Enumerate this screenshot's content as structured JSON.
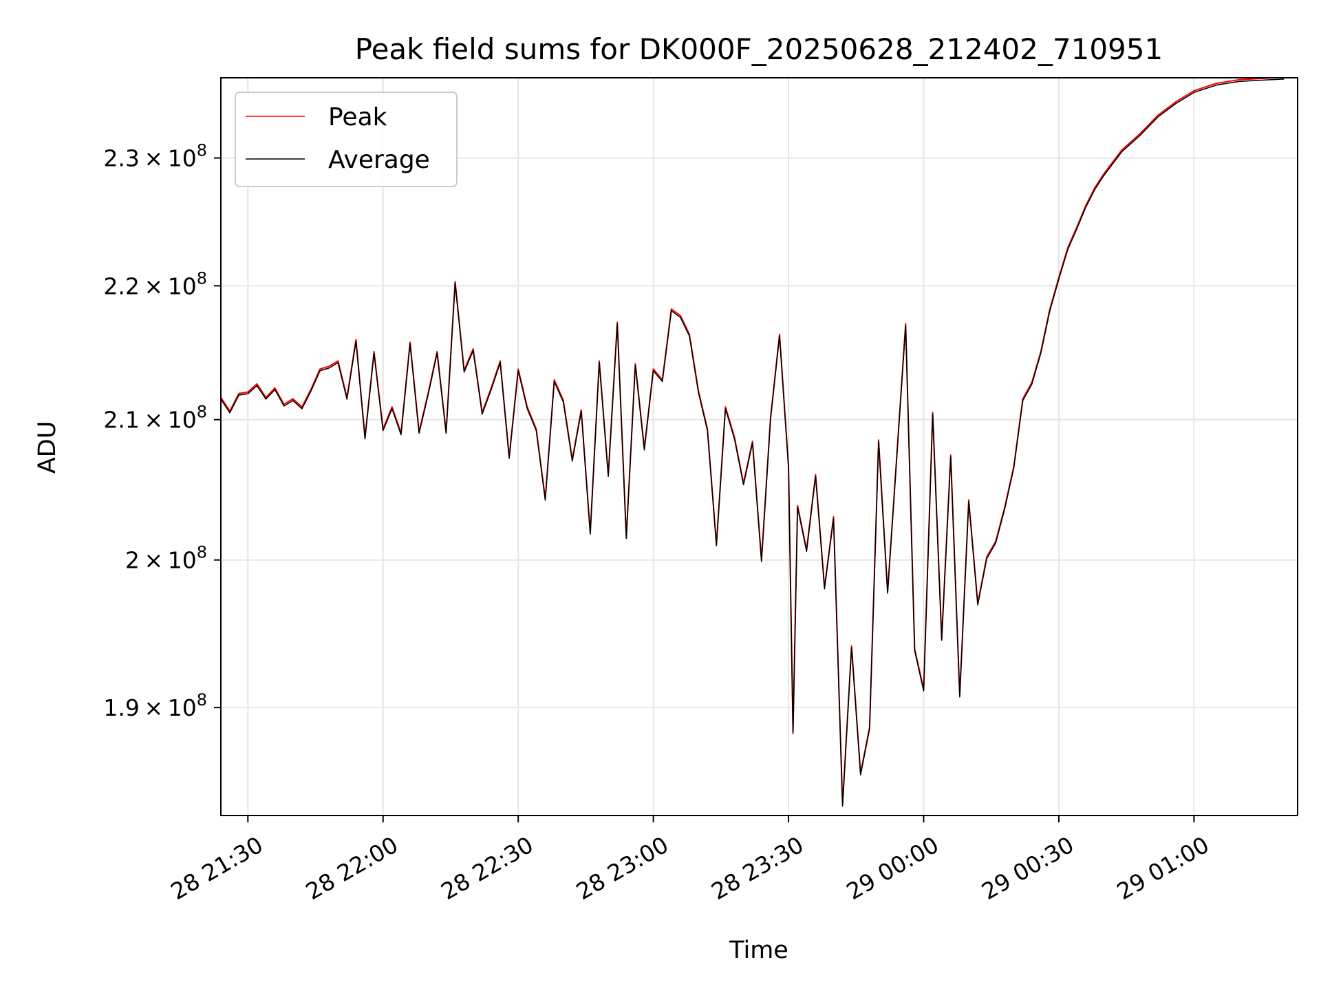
{
  "chart_data": {
    "type": "line",
    "title": "Peak field sums for DK000F_20250628_212402_710951",
    "xlabel": "Time",
    "ylabel": "ADU",
    "y_scale": "log",
    "xlim": [
      "2025-06-28 21:24:00",
      "2025-06-29 01:23:00"
    ],
    "ylim": [
      183000000,
      236500000
    ],
    "grid": true,
    "legend_placement": "top-left",
    "x_ticks": [
      {
        "value": "2025-06-28 21:30",
        "label": "28 21:30"
      },
      {
        "value": "2025-06-28 22:00",
        "label": "28 22:00"
      },
      {
        "value": "2025-06-28 22:30",
        "label": "28 22:30"
      },
      {
        "value": "2025-06-28 23:00",
        "label": "28 23:00"
      },
      {
        "value": "2025-06-28 23:30",
        "label": "28 23:30"
      },
      {
        "value": "2025-06-29 00:00",
        "label": "29 00:00"
      },
      {
        "value": "2025-06-29 00:30",
        "label": "29 00:30"
      },
      {
        "value": "2025-06-29 01:00",
        "label": "29 01:00"
      }
    ],
    "y_ticks": [
      {
        "value": 190000000,
        "mantissa": "1.9",
        "exp": "8"
      },
      {
        "value": 200000000,
        "mantissa": "2",
        "exp": "8"
      },
      {
        "value": 210000000,
        "mantissa": "2.1",
        "exp": "8"
      },
      {
        "value": 220000000,
        "mantissa": "2.2",
        "exp": "8"
      },
      {
        "value": 230000000,
        "mantissa": "2.3",
        "exp": "8"
      }
    ],
    "series": [
      {
        "name": "Peak",
        "color": "#ff0000",
        "offset_pct": 0.06,
        "x": [
          "2025-06-28 21:24",
          "2025-06-28 21:26",
          "2025-06-28 21:28",
          "2025-06-28 21:30",
          "2025-06-28 21:32",
          "2025-06-28 21:34",
          "2025-06-28 21:36",
          "2025-06-28 21:38",
          "2025-06-28 21:40",
          "2025-06-28 21:42",
          "2025-06-28 21:44",
          "2025-06-28 21:46",
          "2025-06-28 21:48",
          "2025-06-28 21:50",
          "2025-06-28 21:52",
          "2025-06-28 21:54",
          "2025-06-28 21:56",
          "2025-06-28 21:58",
          "2025-06-28 22:00",
          "2025-06-28 22:02",
          "2025-06-28 22:04",
          "2025-06-28 22:06",
          "2025-06-28 22:08",
          "2025-06-28 22:10",
          "2025-06-28 22:12",
          "2025-06-28 22:14",
          "2025-06-28 22:16",
          "2025-06-28 22:18",
          "2025-06-28 22:20",
          "2025-06-28 22:22",
          "2025-06-28 22:24",
          "2025-06-28 22:26",
          "2025-06-28 22:28",
          "2025-06-28 22:30",
          "2025-06-28 22:32",
          "2025-06-28 22:34",
          "2025-06-28 22:36",
          "2025-06-28 22:38",
          "2025-06-28 22:40",
          "2025-06-28 22:42",
          "2025-06-28 22:44",
          "2025-06-28 22:46",
          "2025-06-28 22:48",
          "2025-06-28 22:50",
          "2025-06-28 22:52",
          "2025-06-28 22:54",
          "2025-06-28 22:56",
          "2025-06-28 22:58",
          "2025-06-28 23:00",
          "2025-06-28 23:02",
          "2025-06-28 23:04",
          "2025-06-28 23:06",
          "2025-06-28 23:08",
          "2025-06-28 23:10",
          "2025-06-28 23:12",
          "2025-06-28 23:14",
          "2025-06-28 23:16",
          "2025-06-28 23:18",
          "2025-06-28 23:20",
          "2025-06-28 23:22",
          "2025-06-28 23:24",
          "2025-06-28 23:26",
          "2025-06-28 23:28",
          "2025-06-28 23:30",
          "2025-06-28 23:31",
          "2025-06-28 23:32",
          "2025-06-28 23:34",
          "2025-06-28 23:36",
          "2025-06-28 23:38",
          "2025-06-28 23:40",
          "2025-06-28 23:42",
          "2025-06-28 23:44",
          "2025-06-28 23:46",
          "2025-06-28 23:48",
          "2025-06-28 23:50",
          "2025-06-28 23:52",
          "2025-06-28 23:54",
          "2025-06-28 23:56",
          "2025-06-28 23:58",
          "2025-06-29 00:00",
          "2025-06-29 00:02",
          "2025-06-29 00:04",
          "2025-06-29 00:06",
          "2025-06-29 00:08",
          "2025-06-29 00:10",
          "2025-06-29 00:12",
          "2025-06-29 00:14",
          "2025-06-29 00:16",
          "2025-06-29 00:18",
          "2025-06-29 00:20",
          "2025-06-29 00:22",
          "2025-06-29 00:24",
          "2025-06-29 00:26",
          "2025-06-29 00:28",
          "2025-06-29 00:30",
          "2025-06-29 00:32",
          "2025-06-29 00:34",
          "2025-06-29 00:36",
          "2025-06-29 00:38",
          "2025-06-29 00:40",
          "2025-06-29 00:44",
          "2025-06-29 00:48",
          "2025-06-29 00:52",
          "2025-06-29 00:56",
          "2025-06-29 01:00",
          "2025-06-29 01:05",
          "2025-06-29 01:10",
          "2025-06-29 01:15",
          "2025-06-29 01:20"
        ],
        "values": [
          211500000,
          210500000,
          211800000,
          211900000,
          212500000,
          211500000,
          212200000,
          211000000,
          211400000,
          210800000,
          212100000,
          213600000,
          213800000,
          214200000,
          211500000,
          215800000,
          208600000,
          214900000,
          209200000,
          210800000,
          208900000,
          215600000,
          209000000,
          211800000,
          214900000,
          209000000,
          220200000,
          213500000,
          215100000,
          210400000,
          212200000,
          214200000,
          207200000,
          213600000,
          210800000,
          209200000,
          204200000,
          212800000,
          211300000,
          207000000,
          210600000,
          201800000,
          214200000,
          205900000,
          217100000,
          201500000,
          214000000,
          207800000,
          213600000,
          212800000,
          218100000,
          217600000,
          216200000,
          212000000,
          209200000,
          201000000,
          210800000,
          208600000,
          205300000,
          208300000,
          199900000,
          210000000,
          216200000,
          206500000,
          188300000,
          203700000,
          200600000,
          205900000,
          198000000,
          202900000,
          183600000,
          194000000,
          185600000,
          188600000,
          208400000,
          197700000,
          207100000,
          217000000,
          193800000,
          191100000,
          210400000,
          194500000,
          207300000,
          190700000,
          204100000,
          196900000,
          200100000,
          201200000,
          203600000,
          206500000,
          211400000,
          212600000,
          214900000,
          218100000,
          220500000,
          222800000,
          224400000,
          226100000,
          227500000,
          228600000,
          230500000,
          231800000,
          233300000,
          234400000,
          235300000,
          235900000,
          236200000,
          236300000,
          236400000
        ]
      },
      {
        "name": "Average",
        "color": "#000000",
        "offset_pct": 0,
        "x": [
          "2025-06-28 21:24",
          "2025-06-28 21:26",
          "2025-06-28 21:28",
          "2025-06-28 21:30",
          "2025-06-28 21:32",
          "2025-06-28 21:34",
          "2025-06-28 21:36",
          "2025-06-28 21:38",
          "2025-06-28 21:40",
          "2025-06-28 21:42",
          "2025-06-28 21:44",
          "2025-06-28 21:46",
          "2025-06-28 21:48",
          "2025-06-28 21:50",
          "2025-06-28 21:52",
          "2025-06-28 21:54",
          "2025-06-28 21:56",
          "2025-06-28 21:58",
          "2025-06-28 22:00",
          "2025-06-28 22:02",
          "2025-06-28 22:04",
          "2025-06-28 22:06",
          "2025-06-28 22:08",
          "2025-06-28 22:10",
          "2025-06-28 22:12",
          "2025-06-28 22:14",
          "2025-06-28 22:16",
          "2025-06-28 22:18",
          "2025-06-28 22:20",
          "2025-06-28 22:22",
          "2025-06-28 22:24",
          "2025-06-28 22:26",
          "2025-06-28 22:28",
          "2025-06-28 22:30",
          "2025-06-28 22:32",
          "2025-06-28 22:34",
          "2025-06-28 22:36",
          "2025-06-28 22:38",
          "2025-06-28 22:40",
          "2025-06-28 22:42",
          "2025-06-28 22:44",
          "2025-06-28 22:46",
          "2025-06-28 22:48",
          "2025-06-28 22:50",
          "2025-06-28 22:52",
          "2025-06-28 22:54",
          "2025-06-28 22:56",
          "2025-06-28 22:58",
          "2025-06-28 23:00",
          "2025-06-28 23:02",
          "2025-06-28 23:04",
          "2025-06-28 23:06",
          "2025-06-28 23:08",
          "2025-06-28 23:10",
          "2025-06-28 23:12",
          "2025-06-28 23:14",
          "2025-06-28 23:16",
          "2025-06-28 23:18",
          "2025-06-28 23:20",
          "2025-06-28 23:22",
          "2025-06-28 23:24",
          "2025-06-28 23:26",
          "2025-06-28 23:28",
          "2025-06-28 23:30",
          "2025-06-28 23:31",
          "2025-06-28 23:32",
          "2025-06-28 23:34",
          "2025-06-28 23:36",
          "2025-06-28 23:38",
          "2025-06-28 23:40",
          "2025-06-28 23:42",
          "2025-06-28 23:44",
          "2025-06-28 23:46",
          "2025-06-28 23:48",
          "2025-06-28 23:50",
          "2025-06-28 23:52",
          "2025-06-28 23:54",
          "2025-06-28 23:56",
          "2025-06-28 23:58",
          "2025-06-29 00:00",
          "2025-06-29 00:02",
          "2025-06-29 00:04",
          "2025-06-29 00:06",
          "2025-06-29 00:08",
          "2025-06-29 00:10",
          "2025-06-29 00:12",
          "2025-06-29 00:14",
          "2025-06-29 00:16",
          "2025-06-29 00:18",
          "2025-06-29 00:20",
          "2025-06-29 00:22",
          "2025-06-29 00:24",
          "2025-06-29 00:26",
          "2025-06-29 00:28",
          "2025-06-29 00:30",
          "2025-06-29 00:32",
          "2025-06-29 00:34",
          "2025-06-29 00:36",
          "2025-06-29 00:38",
          "2025-06-29 00:40",
          "2025-06-29 00:44",
          "2025-06-29 00:48",
          "2025-06-29 00:52",
          "2025-06-29 00:56",
          "2025-06-29 01:00",
          "2025-06-29 01:05",
          "2025-06-29 01:10",
          "2025-06-29 01:15",
          "2025-06-29 01:20"
        ],
        "values": [
          211500000,
          210500000,
          211800000,
          211900000,
          212500000,
          211500000,
          212200000,
          211000000,
          211400000,
          210800000,
          212100000,
          213600000,
          213800000,
          214200000,
          211500000,
          215800000,
          208600000,
          214900000,
          209200000,
          210800000,
          208900000,
          215600000,
          209000000,
          211800000,
          214900000,
          209000000,
          220200000,
          213500000,
          215100000,
          210400000,
          212200000,
          214200000,
          207200000,
          213600000,
          210800000,
          209200000,
          204200000,
          212800000,
          211300000,
          207000000,
          210600000,
          201800000,
          214200000,
          205900000,
          217100000,
          201500000,
          214000000,
          207800000,
          213600000,
          212800000,
          218100000,
          217600000,
          216200000,
          212000000,
          209200000,
          201000000,
          210800000,
          208600000,
          205300000,
          208300000,
          199900000,
          210000000,
          216200000,
          206500000,
          188300000,
          203700000,
          200600000,
          205900000,
          198000000,
          202900000,
          183600000,
          194000000,
          185600000,
          188600000,
          208400000,
          197700000,
          207100000,
          217000000,
          193800000,
          191100000,
          210400000,
          194500000,
          207300000,
          190700000,
          204100000,
          196900000,
          200100000,
          201200000,
          203600000,
          206500000,
          211400000,
          212600000,
          214900000,
          218100000,
          220500000,
          222800000,
          224400000,
          226100000,
          227500000,
          228600000,
          230500000,
          231800000,
          233300000,
          234400000,
          235300000,
          235900000,
          236200000,
          236300000,
          236400000
        ]
      }
    ]
  }
}
